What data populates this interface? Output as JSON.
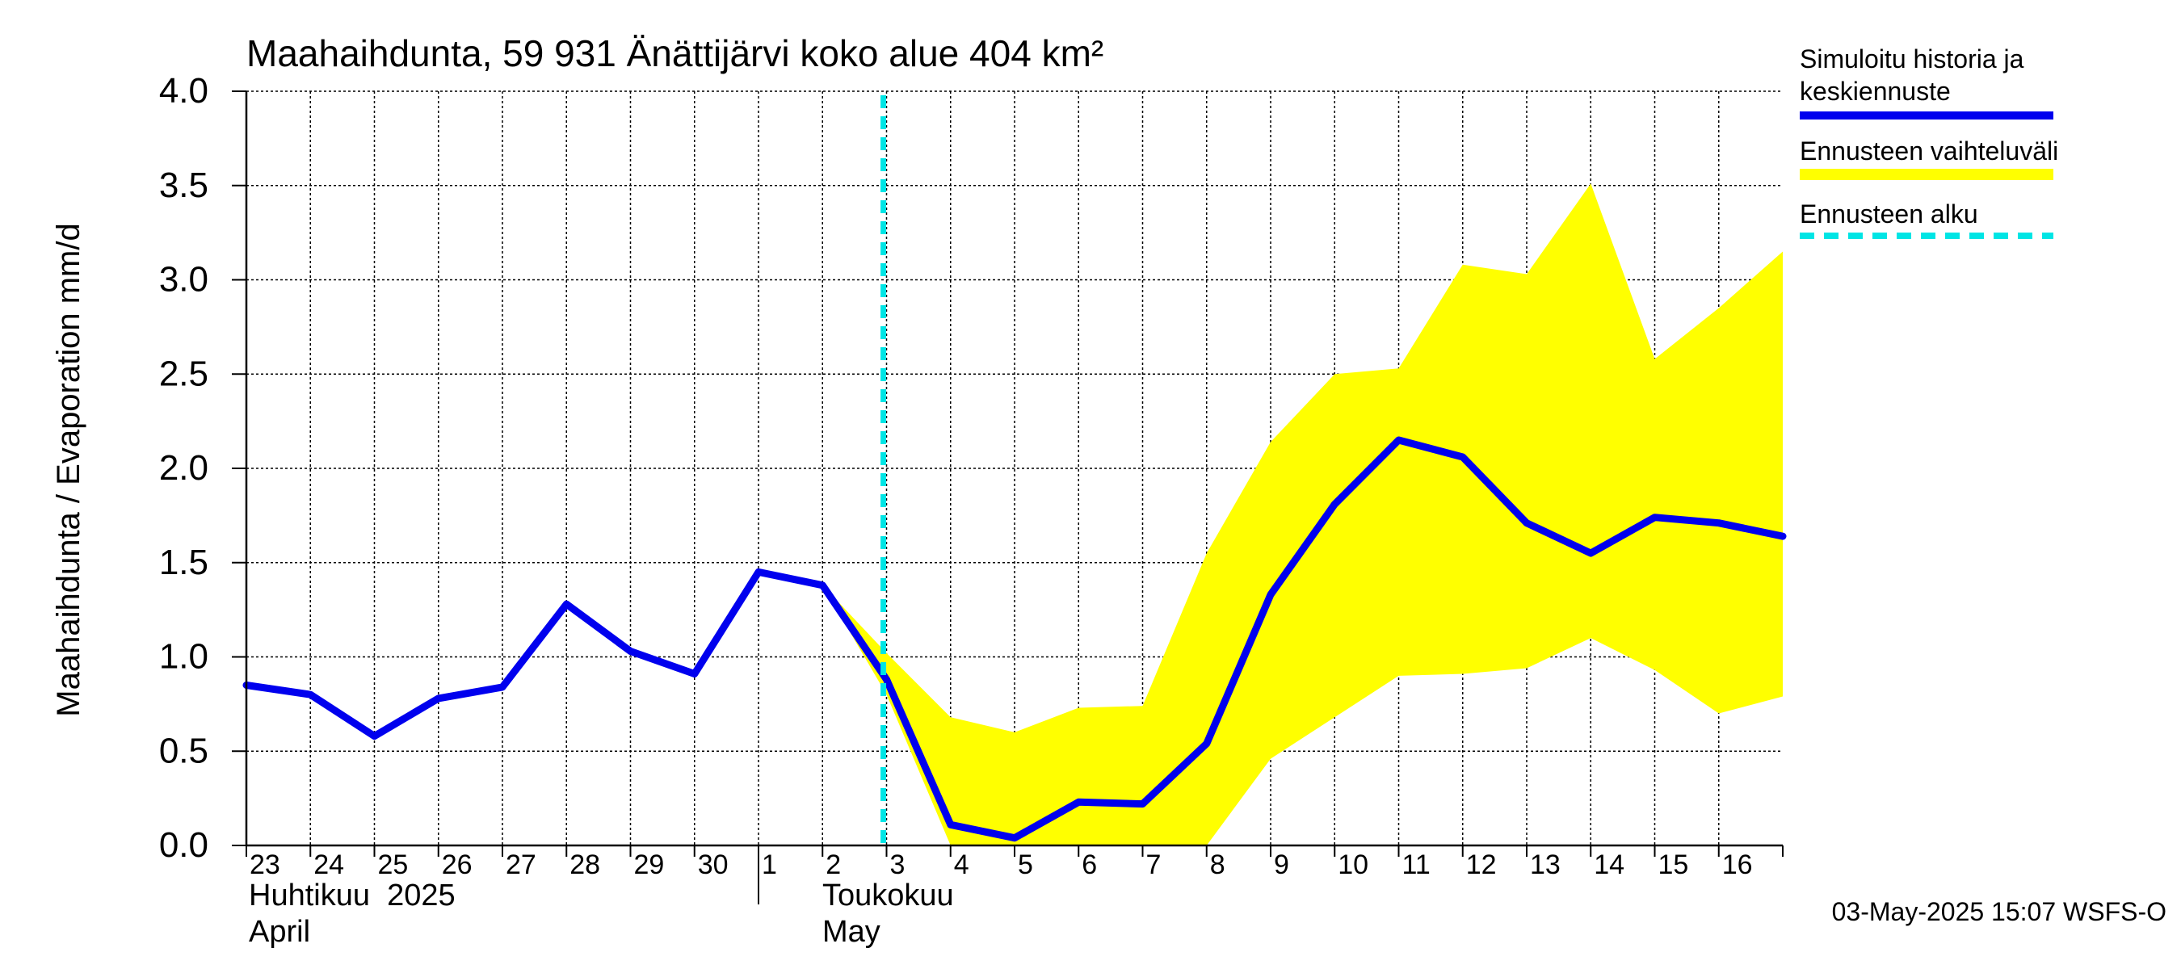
{
  "title": "Maahaihdunta, 59 931 Änättijärvi koko alue 404 km²",
  "ylabel": "Maahaihdunta / Evaporation   mm/d",
  "timestamp": "03-May-2025 15:07 WSFS-O",
  "month_labels": [
    {
      "fi": "Huhtikuu  2025",
      "en": "April"
    },
    {
      "fi": "Toukokuu",
      "en": "May"
    }
  ],
  "legend": [
    {
      "label_lines": [
        "Simuloitu historia ja",
        "keskiennuste"
      ],
      "color": "#0000ee",
      "style": "solid"
    },
    {
      "label_lines": [
        "Ennusteen vaihteluväli"
      ],
      "color": "#ffff00",
      "style": "band"
    },
    {
      "label_lines": [
        "Ennusteen alku"
      ],
      "color": "#00e5e5",
      "style": "dashed"
    }
  ],
  "colors": {
    "history": "#0000ee",
    "band": "#ffff00",
    "forecast_start": "#00e5e5",
    "grid": "#000000"
  },
  "chart_data": {
    "type": "line",
    "title": "Maahaihdunta, 59 931 Änättijärvi koko alue 404 km²",
    "ylabel": "Maahaihdunta / Evaporation   mm/d",
    "ylim": [
      0.0,
      4.0
    ],
    "yticks": [
      "0.0",
      "0.5",
      "1.0",
      "1.5",
      "2.0",
      "2.5",
      "3.0",
      "3.5",
      "4.0"
    ],
    "xlim": [
      "2025-04-23",
      "2025-05-17"
    ],
    "xtick_labels": [
      "23",
      "24",
      "25",
      "26",
      "27",
      "28",
      "29",
      "30",
      "1",
      "2",
      "3",
      "4",
      "5",
      "6",
      "7",
      "8",
      "9",
      "10",
      "11",
      "12",
      "13",
      "14",
      "15",
      "16"
    ],
    "grid": true,
    "forecast_start": "2025-05-03",
    "series": [
      {
        "name": "Simuloitu historia ja keskiennuste",
        "x": [
          "2025-04-23",
          "2025-04-24",
          "2025-04-25",
          "2025-04-26",
          "2025-04-27",
          "2025-04-28",
          "2025-04-29",
          "2025-04-30",
          "2025-05-01",
          "2025-05-02",
          "2025-05-03",
          "2025-05-04",
          "2025-05-05",
          "2025-05-06",
          "2025-05-07",
          "2025-05-08",
          "2025-05-09",
          "2025-05-10",
          "2025-05-11",
          "2025-05-12",
          "2025-05-13",
          "2025-05-14",
          "2025-05-15",
          "2025-05-16",
          "2025-05-17"
        ],
        "values": [
          0.85,
          0.8,
          0.58,
          0.78,
          0.84,
          1.28,
          1.03,
          0.91,
          1.45,
          1.38,
          0.88,
          0.11,
          0.04,
          0.23,
          0.22,
          0.54,
          1.33,
          1.81,
          2.15,
          2.06,
          1.71,
          1.55,
          1.74,
          1.71,
          1.64
        ]
      }
    ],
    "band": {
      "name": "Ennusteen vaihteluväli",
      "x": [
        "2025-05-02",
        "2025-05-03",
        "2025-05-04",
        "2025-05-05",
        "2025-05-06",
        "2025-05-07",
        "2025-05-08",
        "2025-05-09",
        "2025-05-10",
        "2025-05-11",
        "2025-05-12",
        "2025-05-13",
        "2025-05-14",
        "2025-05-15",
        "2025-05-16",
        "2025-05-17"
      ],
      "upper": [
        1.38,
        1.02,
        0.68,
        0.6,
        0.73,
        0.74,
        1.55,
        2.14,
        2.5,
        2.53,
        3.08,
        3.03,
        3.51,
        2.58,
        2.85,
        3.15
      ],
      "lower": [
        1.38,
        0.8,
        0.0,
        0.0,
        0.0,
        0.0,
        0.0,
        0.46,
        0.68,
        0.9,
        0.91,
        0.94,
        1.1,
        0.93,
        0.7,
        0.79
      ]
    }
  }
}
